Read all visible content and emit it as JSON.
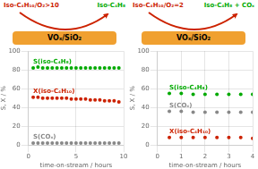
{
  "chart_data": [
    {
      "type": "scatter",
      "annotations": [
        {
          "text": "Iso-C₄H₁₀/O₂>10",
          "color": "#cc2200"
        },
        {
          "text": "Iso-C₄H₈",
          "color": "#00aa00"
        },
        {
          "text": "VOₓ/SiO₂",
          "color": "#f0a030"
        }
      ],
      "x_label": "time-on-stream / hours",
      "y_label": "S, X / %",
      "x": [
        0.5,
        1.0,
        1.5,
        2.0,
        2.5,
        3.0,
        3.5,
        4.0,
        4.5,
        5.0,
        5.5,
        6.0,
        6.5,
        7.0,
        7.5,
        8.0,
        8.5,
        9.0,
        9.5
      ],
      "series": [
        {
          "name": "S(iso-C₄H₈)",
          "color": "#00aa00",
          "values": [
            82,
            83,
            82,
            82,
            82,
            82,
            82,
            82,
            82,
            82,
            82,
            82,
            82,
            82,
            82,
            82,
            82,
            82,
            82
          ]
        },
        {
          "name": "X(iso-C₄H₁₀)",
          "color": "#cc2200",
          "values": [
            51,
            51,
            50,
            50,
            50,
            50,
            50,
            50,
            49,
            49,
            49,
            49,
            48,
            48,
            48,
            47,
            47,
            47,
            46
          ]
        },
        {
          "name": "S(COₓ)",
          "color": "#888888",
          "values": [
            2,
            2,
            2,
            2,
            2,
            2,
            2,
            2,
            2,
            2,
            2,
            2,
            2,
            2,
            2,
            2,
            2,
            2,
            2
          ]
        }
      ],
      "xlim": [
        0,
        10
      ],
      "xticks": [
        0,
        5,
        10
      ],
      "ylim": [
        0,
        100
      ],
      "yticks": [
        0,
        20,
        40,
        60,
        80,
        100
      ],
      "grid": true
    },
    {
      "type": "scatter",
      "annotations": [
        {
          "text": "Iso-C₄H₁₀/O₂=2",
          "color": "#cc2200"
        },
        {
          "text": "Iso-C₄H₈ + COₓ",
          "color": "#00aa00"
        },
        {
          "text": "VOₓ/SiO₂",
          "color": "#f0a030"
        }
      ],
      "x_label": "time-on-stream / hours",
      "y_label": "S, X / %",
      "x": [
        0.5,
        1.0,
        1.5,
        2.0,
        2.5,
        3.0,
        3.5,
        4.0
      ],
      "series": [
        {
          "name": "S(iso-C₄H₈)",
          "color": "#00aa00",
          "values": [
            55,
            55,
            54,
            54,
            54,
            54,
            54,
            54
          ]
        },
        {
          "name": "S(COₓ)",
          "color": "#888888",
          "values": [
            36,
            36,
            35,
            35,
            35,
            35,
            35,
            35
          ]
        },
        {
          "name": "X(iso-C₄H₁₀)",
          "color": "#cc2200",
          "values": [
            8,
            8,
            8,
            8,
            8,
            8,
            8,
            7
          ]
        }
      ],
      "xlim": [
        0,
        4
      ],
      "xticks": [
        0,
        1,
        2,
        3,
        4
      ],
      "ylim": [
        0,
        100
      ],
      "yticks": [
        0,
        20,
        40,
        60,
        80,
        100
      ],
      "grid": true
    }
  ]
}
